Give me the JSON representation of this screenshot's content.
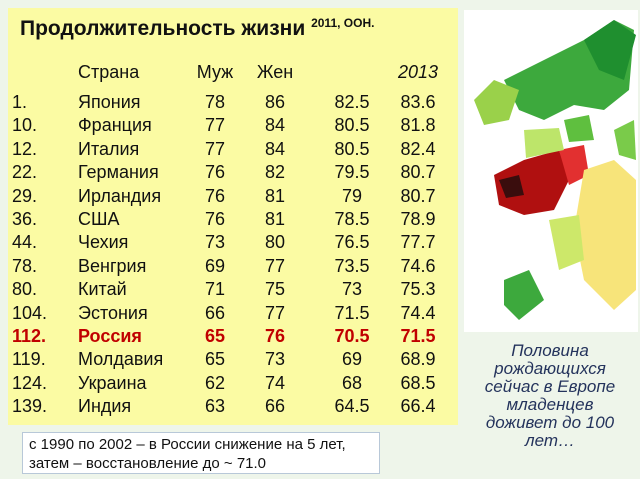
{
  "title": "Продолжительность жизни",
  "title_note": "2011, ООН.",
  "table": {
    "header": {
      "country": "Страна",
      "male": "Муж",
      "female": "Жен",
      "year": "2013"
    },
    "rows": [
      [
        "1.",
        "Япония",
        "78",
        "86",
        "82.5",
        "83.6"
      ],
      [
        "10.",
        "Франция",
        "77",
        "84",
        "80.5",
        "81.8"
      ],
      [
        "12.",
        "Италия",
        "77",
        "84",
        "80.5",
        "82.4"
      ],
      [
        "22.",
        "Германия",
        "76",
        "82",
        "79.5",
        "80.7"
      ],
      [
        "29.",
        "Ирландия",
        "76",
        "81",
        "79",
        "80.7"
      ],
      [
        "36.",
        "США",
        "76",
        "81",
        "78.5",
        "78.9"
      ],
      [
        "44.",
        "Чехия",
        "73",
        "80",
        "76.5",
        "77.7"
      ],
      [
        "78.",
        "Венгрия",
        "69",
        "77",
        "73.5",
        "74.6"
      ],
      [
        "80.",
        "Китай",
        "71",
        "75",
        "73",
        "75.3"
      ],
      [
        "104.",
        "Эстония",
        "66",
        "77",
        "71.5",
        "74.4"
      ],
      [
        "112.",
        "Россия",
        "65",
        "76",
        "70.5",
        "71.5"
      ],
      [
        "119.",
        "Молдавия",
        "65",
        "73",
        "69",
        "68.9"
      ],
      [
        "124.",
        "Украина",
        "62",
        "74",
        "68",
        "68.5"
      ],
      [
        "139.",
        "Индия",
        "63",
        "66",
        "64.5",
        "66.4"
      ]
    ]
  },
  "note": [
    "с 1990 по 2002 – в России снижение на 5 лет,",
    "затем – восстановление до ~ 71.0"
  ],
  "side_text": [
    "Половина",
    "рождающихся",
    "сейчас в Европе",
    "младенцев",
    "доживет до 100",
    "лет…"
  ]
}
